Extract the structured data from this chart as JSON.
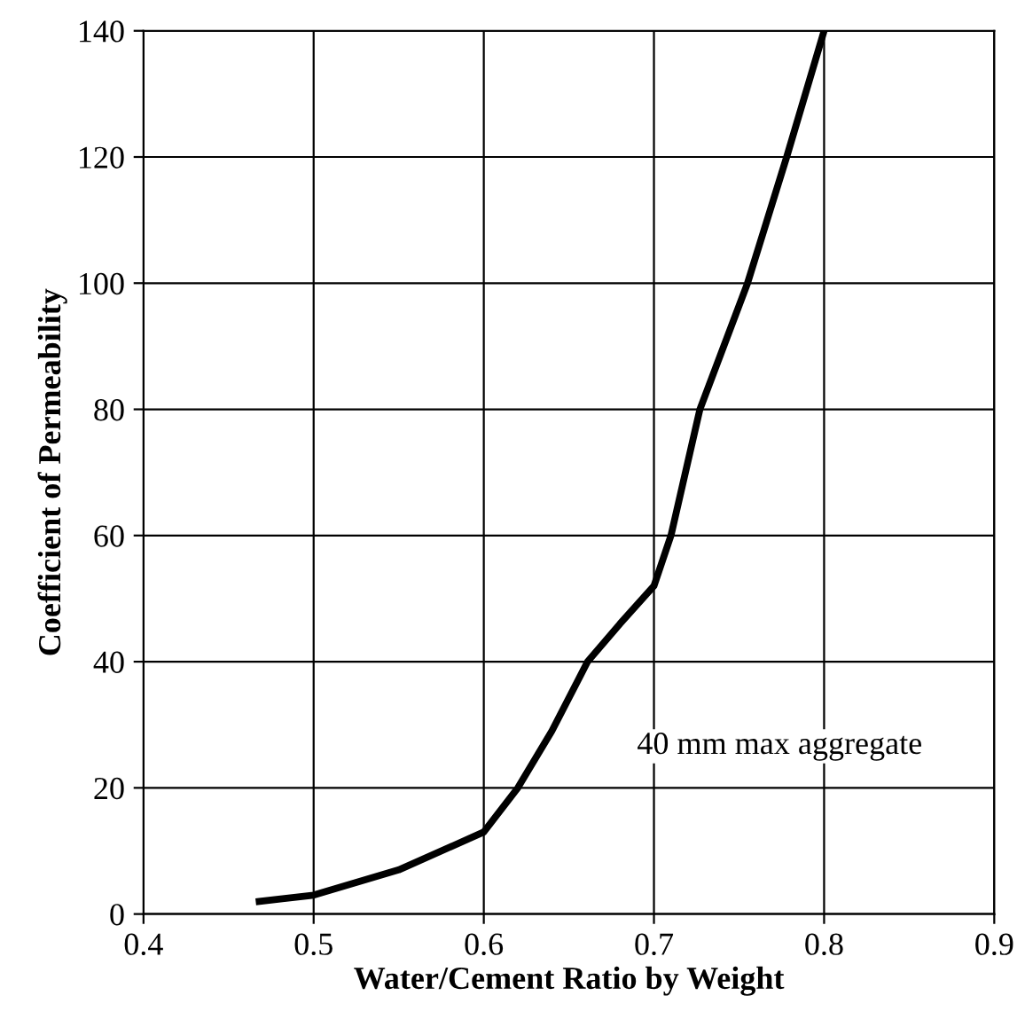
{
  "chart_data": {
    "type": "line",
    "xlabel": "Water/Cement Ratio by Weight",
    "ylabel": "Coefficient of Permeability",
    "x": [
      0.468,
      0.5,
      0.55,
      0.6,
      0.62,
      0.64,
      0.661,
      0.68,
      0.7,
      0.71,
      0.727,
      0.755,
      0.778,
      0.8
    ],
    "series": [
      {
        "color": "#000000",
        "values": [
          2,
          3,
          7,
          13,
          20,
          29,
          40,
          46,
          52,
          60,
          80,
          100,
          120,
          140
        ]
      }
    ],
    "xlim": [
      0.4,
      0.9
    ],
    "xticks": [
      0.4,
      0.5,
      0.6,
      0.7,
      0.8,
      0.9
    ],
    "ylim": [
      0,
      140
    ],
    "yticks": [
      0,
      20,
      40,
      60,
      80,
      100,
      120,
      140
    ],
    "grid": true,
    "marker": "none",
    "line_style": "solid",
    "annotations": [
      "40 mm max aggregate"
    ]
  }
}
